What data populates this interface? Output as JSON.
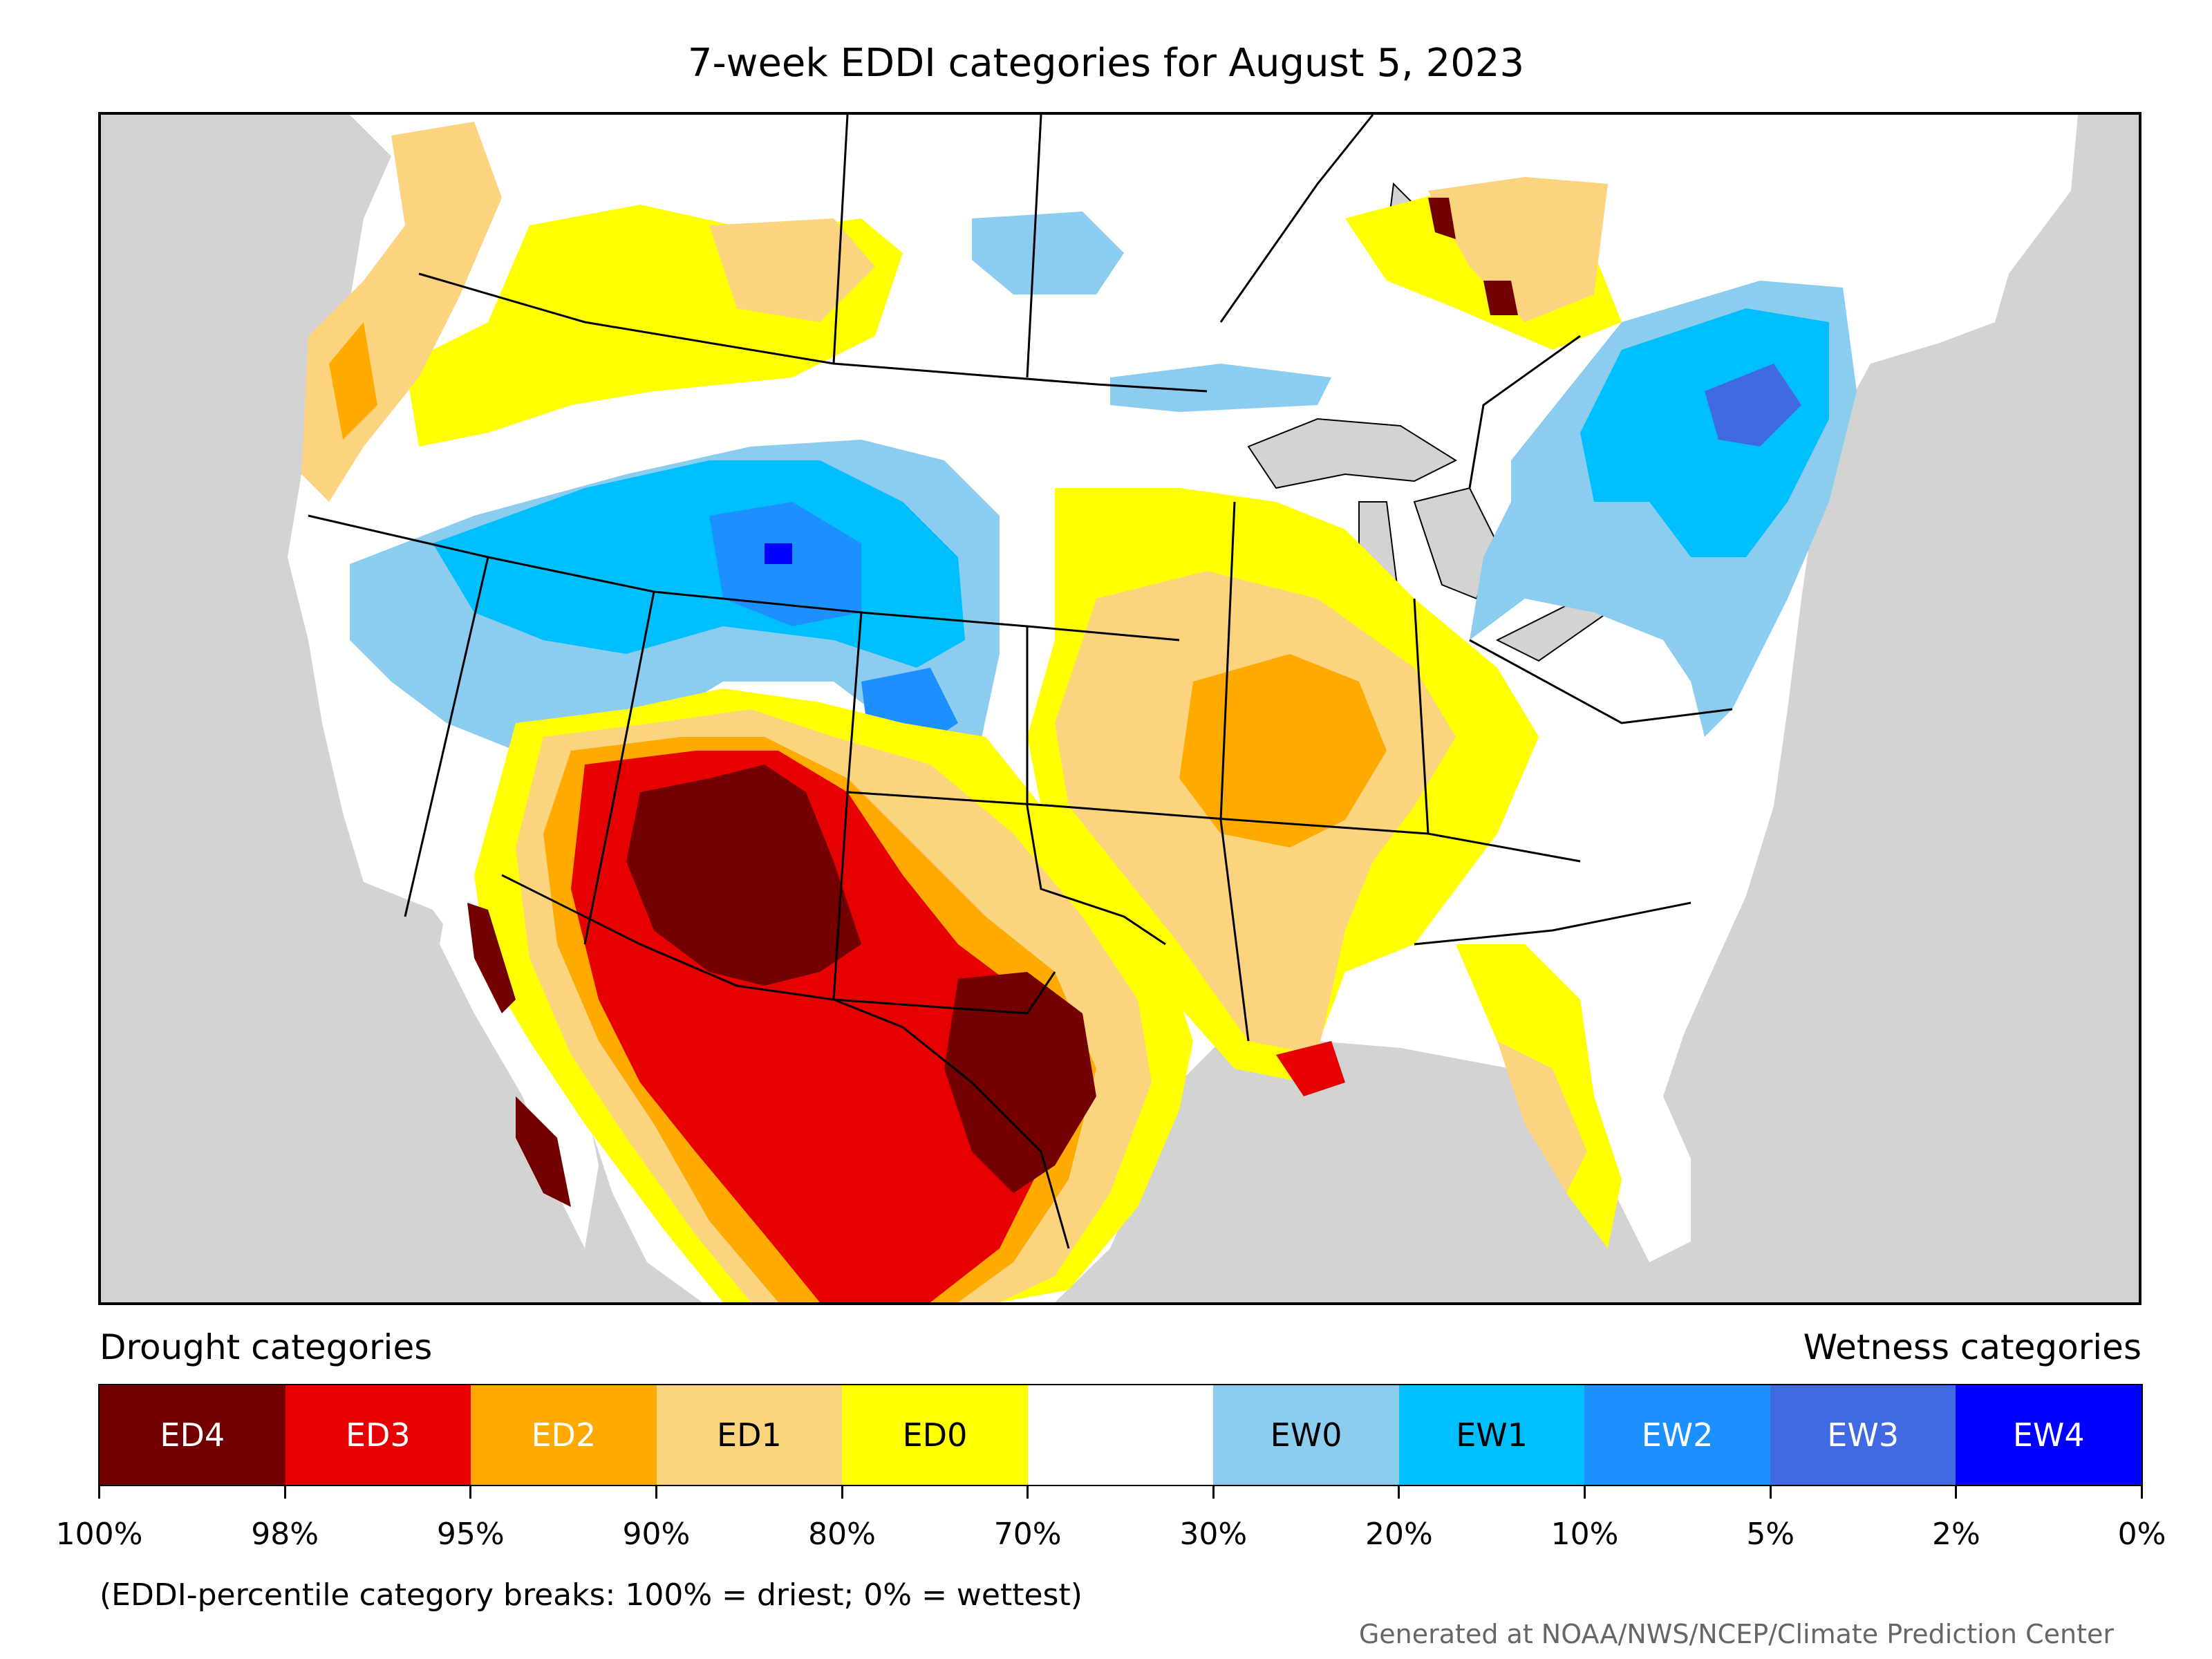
{
  "title": "7-week EDDI categories for August 5, 2023",
  "legend": {
    "drought_label": "Drought categories",
    "wetness_label": "Wetness categories",
    "categories": [
      {
        "label": "ED4",
        "color": "#730000",
        "text_color": "#ffffff"
      },
      {
        "label": "ED3",
        "color": "#e60000",
        "text_color": "#ffffff"
      },
      {
        "label": "ED2",
        "color": "#ffaa00",
        "text_color": "#ffffff"
      },
      {
        "label": "ED1",
        "color": "#fcd37f",
        "text_color": "#000000"
      },
      {
        "label": "ED0",
        "color": "#ffff00",
        "text_color": "#000000"
      },
      {
        "label": "",
        "color": "#ffffff",
        "text_color": "#000000"
      },
      {
        "label": "EW0",
        "color": "#8ccdef",
        "text_color": "#000000"
      },
      {
        "label": "EW1",
        "color": "#00bfff",
        "text_color": "#000000"
      },
      {
        "label": "EW2",
        "color": "#1d90ff",
        "text_color": "#ffffff"
      },
      {
        "label": "EW3",
        "color": "#4169e1",
        "text_color": "#ffffff"
      },
      {
        "label": "EW4",
        "color": "#0000ff",
        "text_color": "#ffffff"
      }
    ],
    "percent_breaks": [
      "100%",
      "98%",
      "95%",
      "90%",
      "80%",
      "70%",
      "30%",
      "20%",
      "10%",
      "5%",
      "2%",
      "0%"
    ]
  },
  "note": "(EDDI-percentile category breaks: 100% = driest; 0% = wettest)",
  "credit": "Generated at NOAA/NWS/NCEP/Climate Prediction Center",
  "map": {
    "ocean_color": "#d3d3d3",
    "land_color": "#ffffff",
    "boundary_color": "#000000"
  }
}
